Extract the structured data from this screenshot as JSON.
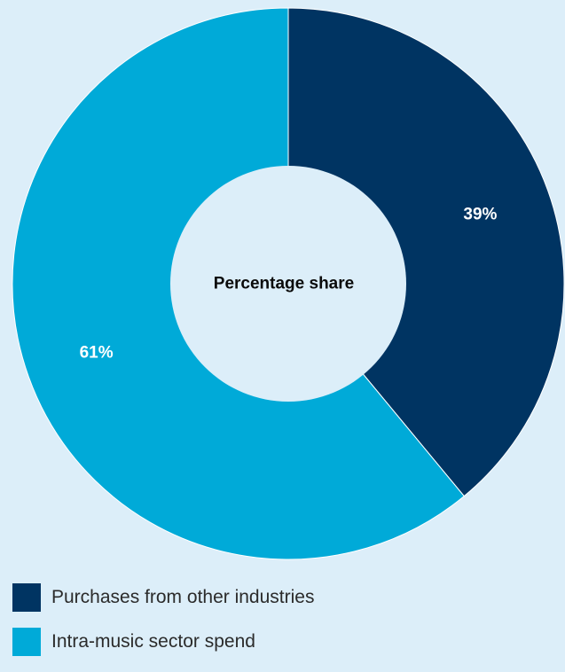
{
  "chart_data": {
    "type": "pie",
    "donut": true,
    "center_label": "Percentage share",
    "start_angle_deg": 0,
    "direction": "clockwise",
    "slices": [
      {
        "name": "Purchases from other industries",
        "value": 39,
        "label": "39%",
        "color": "#003462"
      },
      {
        "name": "Intra-music sector spend",
        "value": 61,
        "label": "61%",
        "color": "#00aad8"
      }
    ],
    "legend_placement": "bottom-left"
  }
}
